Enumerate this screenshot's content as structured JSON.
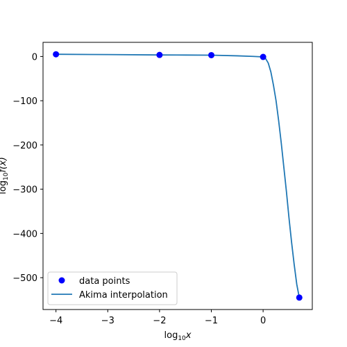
{
  "chart_data": {
    "type": "line",
    "title": "",
    "xlabel": "log",
    "xlabel_sub": "10",
    "xlabel_var": "x",
    "ylabel": "log",
    "ylabel_sub": "10",
    "ylabel_var": "f(x)",
    "xlim": [
      -4.25,
      0.95
    ],
    "ylim": [
      -572,
      32
    ],
    "xticks": [
      -4,
      -3,
      -2,
      -1,
      0
    ],
    "xtick_labels": [
      "−4",
      "−3",
      "−2",
      "−1",
      "0"
    ],
    "yticks": [
      0,
      -100,
      -200,
      -300,
      -400,
      -500
    ],
    "ytick_labels": [
      "0",
      "−100",
      "−200",
      "−300",
      "−400",
      "−500"
    ],
    "grid": false,
    "legend_position": "lower-left",
    "series": [
      {
        "name": "data points",
        "kind": "scatter",
        "color": "#0000ff",
        "x": [
          -4,
          -2,
          -1,
          0,
          0.699
        ],
        "y": [
          5,
          3.5,
          3,
          -1,
          -545
        ]
      },
      {
        "name": "Akima interpolation",
        "kind": "line",
        "color": "#1f77b4",
        "x": [
          -4,
          -3,
          -2,
          -1.5,
          -1,
          -0.5,
          -0.2,
          0,
          0.05,
          0.1,
          0.15,
          0.2,
          0.25,
          0.3,
          0.35,
          0.4,
          0.45,
          0.5,
          0.55,
          0.6,
          0.65,
          0.699
        ],
        "y": [
          5,
          4.3,
          3.5,
          3.3,
          3,
          1.5,
          0.2,
          -1,
          -5,
          -15,
          -35,
          -65,
          -100,
          -145,
          -195,
          -250,
          -305,
          -365,
          -420,
          -470,
          -515,
          -545
        ]
      }
    ]
  }
}
